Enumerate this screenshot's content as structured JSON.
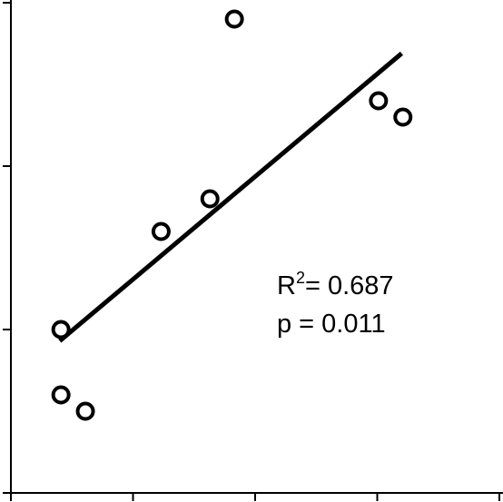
{
  "chart_data": {
    "type": "scatter",
    "title": "",
    "xlabel": "",
    "ylabel": "",
    "xlim": [
      0,
      4
    ],
    "ylim": [
      0,
      3
    ],
    "x_tick_values": [
      0,
      1,
      2,
      3,
      4
    ],
    "y_tick_values": [
      0,
      1,
      2,
      3
    ],
    "grid": false,
    "legend": "none",
    "marker": "open-circle",
    "points": [
      {
        "x": 0.41,
        "y": 1.0
      },
      {
        "x": 0.41,
        "y": 0.6
      },
      {
        "x": 0.61,
        "y": 0.5
      },
      {
        "x": 1.23,
        "y": 1.6
      },
      {
        "x": 1.63,
        "y": 1.8
      },
      {
        "x": 1.83,
        "y": 2.9
      },
      {
        "x": 3.01,
        "y": 2.4
      },
      {
        "x": 3.21,
        "y": 2.3
      }
    ],
    "fit_line": {
      "x": [
        0.4,
        3.2
      ],
      "y": [
        0.93,
        2.69
      ]
    },
    "annotations": {
      "r_squared_label": "R",
      "r_squared_superscript": "2",
      "r_squared_value": "= 0.687",
      "p_value": "p = 0.011"
    },
    "colors": {
      "marks": "#000000",
      "background": "#ffffff"
    }
  }
}
